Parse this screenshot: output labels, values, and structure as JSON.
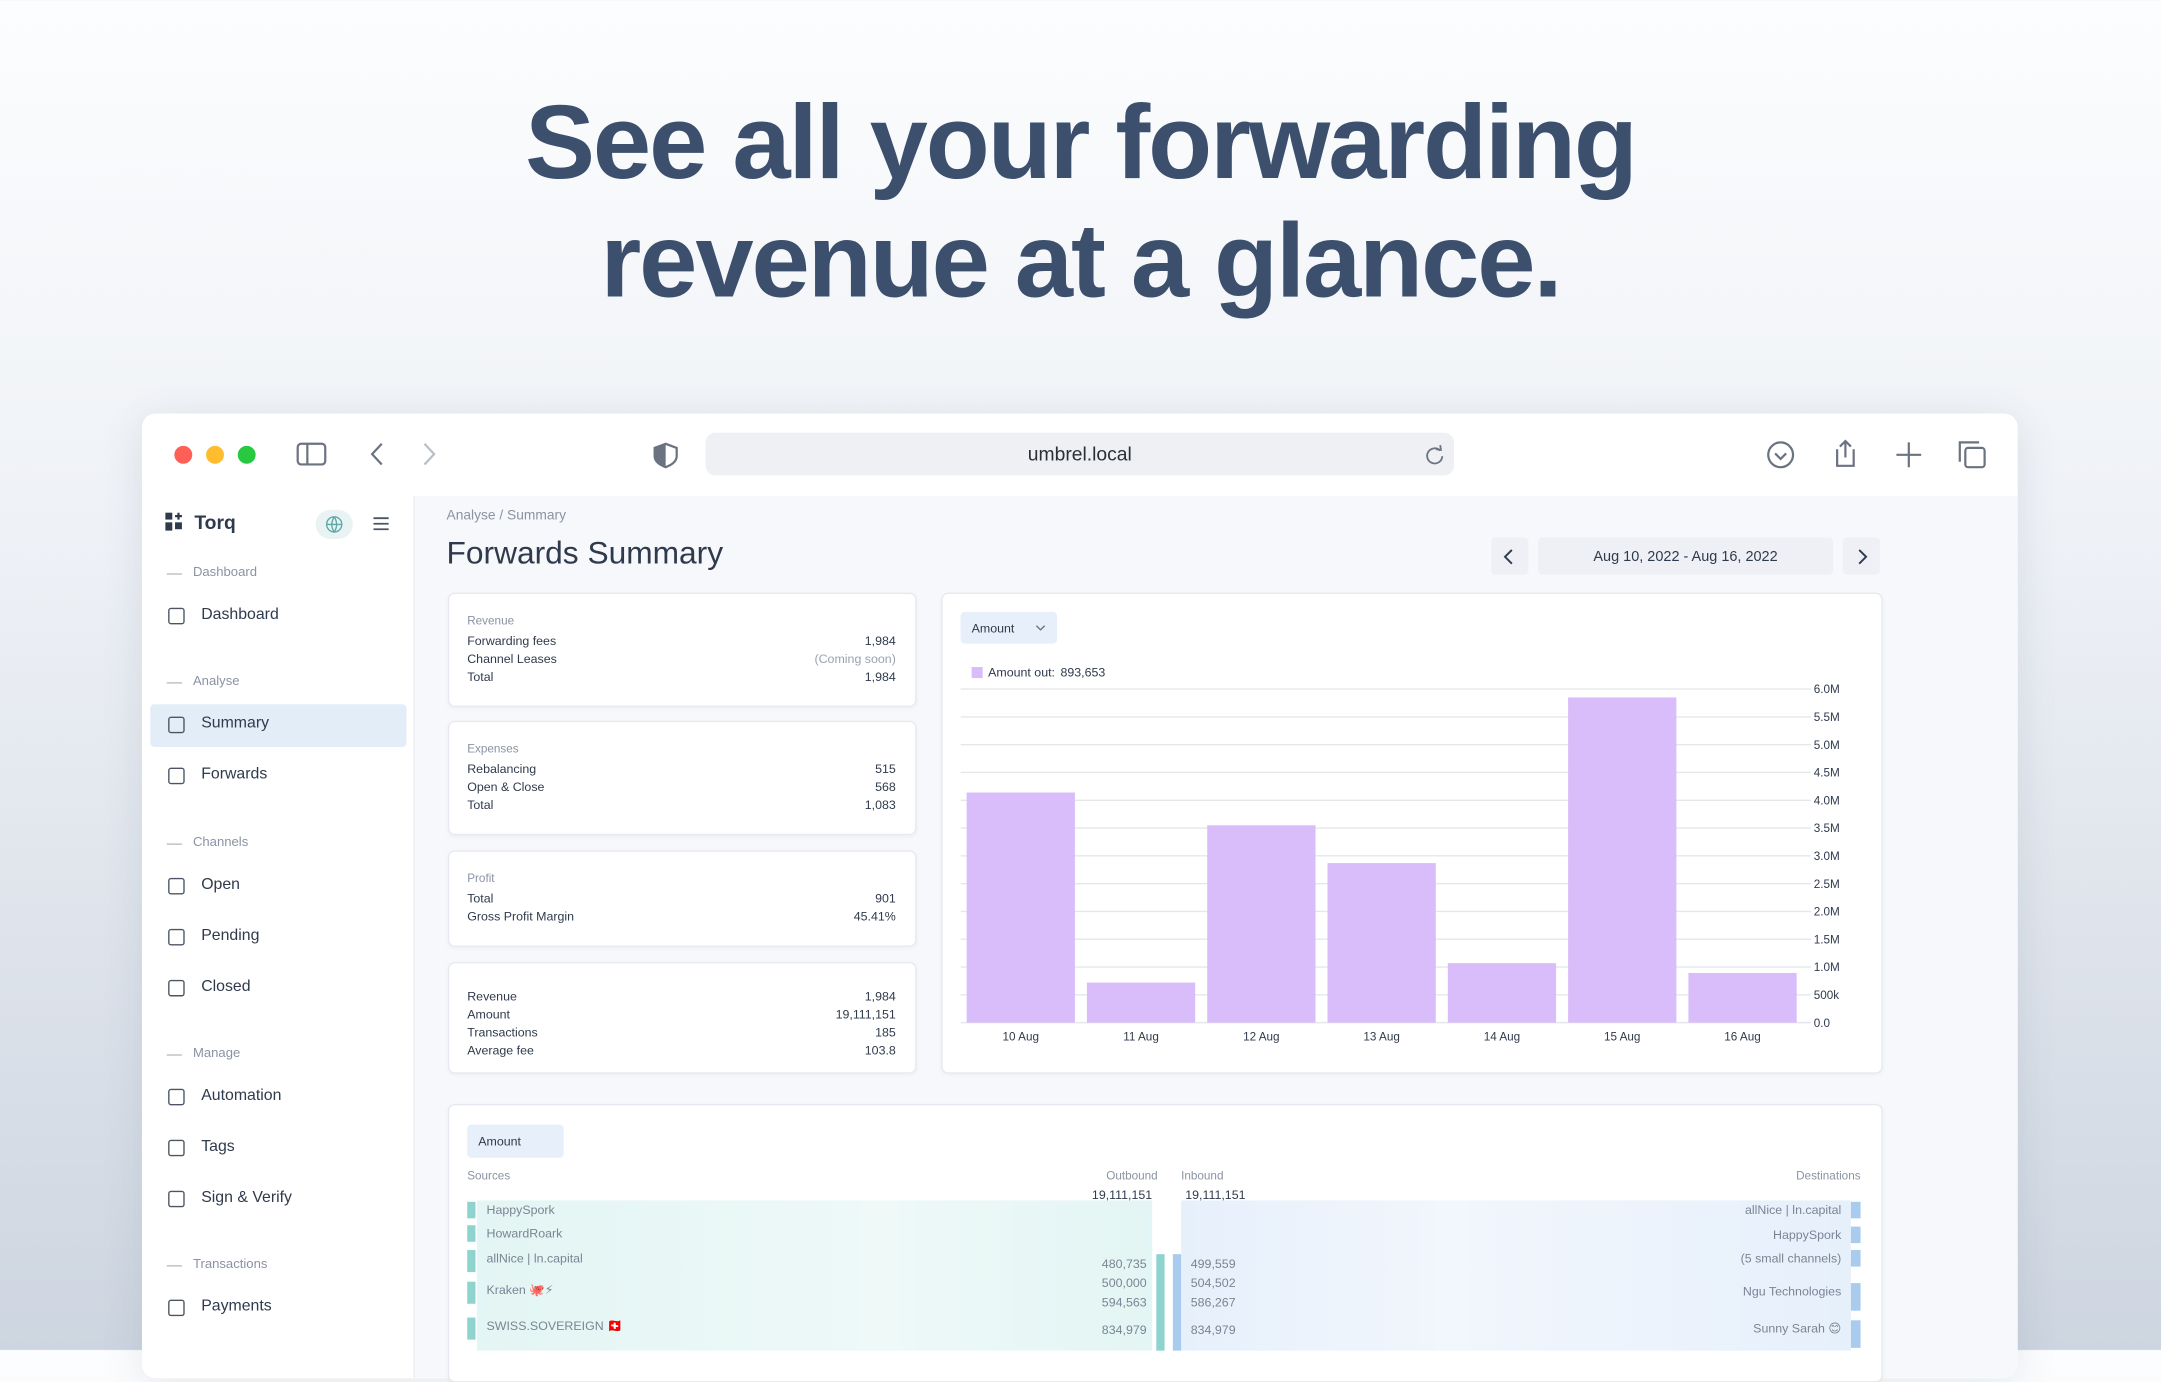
{
  "headline": [
    "See all your forwarding",
    "revenue at a glance."
  ],
  "browser": {
    "url": "umbrel.local"
  },
  "sidebar": {
    "brand": "Torq",
    "sections": [
      {
        "title": "Dashboard",
        "items": [
          "Dashboard"
        ]
      },
      {
        "title": "Analyse",
        "items": [
          "Summary",
          "Forwards"
        ]
      },
      {
        "title": "Channels",
        "items": [
          "Open",
          "Pending",
          "Closed"
        ]
      },
      {
        "title": "Manage",
        "items": [
          "Automation",
          "Tags",
          "Sign & Verify"
        ]
      },
      {
        "title": "Transactions",
        "items": [
          "Payments"
        ]
      }
    ]
  },
  "page": {
    "breadcrumb": "Analyse / Summary",
    "title": "Forwards Summary",
    "date_range": "Aug 10, 2022 - Aug 16, 2022"
  },
  "cards": [
    {
      "title": "Revenue",
      "rows": [
        [
          "Forwarding fees",
          "1,984"
        ],
        [
          "Channel Leases",
          "(Coming soon)"
        ],
        [
          "Total",
          "1,984"
        ]
      ]
    },
    {
      "title": "Expenses",
      "rows": [
        [
          "Rebalancing",
          "515"
        ],
        [
          "Open & Close",
          "568"
        ],
        [
          "Total",
          "1,083"
        ]
      ]
    },
    {
      "title": "Profit",
      "rows": [
        [
          "Total",
          "901"
        ],
        [
          "Gross Profit Margin",
          "45.41%"
        ]
      ]
    },
    {
      "rows": [
        [
          "Revenue",
          "1,984"
        ],
        [
          "Amount",
          "19,111,151"
        ],
        [
          "Transactions",
          "185"
        ],
        [
          "Average fee",
          "103.8"
        ]
      ]
    }
  ],
  "chart_data": {
    "type": "bar",
    "selector": "Amount",
    "categories": [
      "10 Aug",
      "11 Aug",
      "12 Aug",
      "13 Aug",
      "14 Aug",
      "15 Aug",
      "16 Aug"
    ],
    "series": [
      {
        "name": "Amount out:",
        "color": "#d8bdfa",
        "values": [
          4140000,
          720000,
          3550000,
          2870000,
          1070000,
          5850000,
          893653
        ]
      }
    ],
    "legend_value": "893,653",
    "ylim": [
      0,
      6000000
    ],
    "yticks": [
      {
        "value": 0,
        "label": "0.0"
      },
      {
        "value": 500000,
        "label": "500k"
      },
      {
        "value": 1000000,
        "label": "1.0M"
      },
      {
        "value": 1500000,
        "label": "1.5M"
      },
      {
        "value": 2000000,
        "label": "2.0M"
      },
      {
        "value": 2500000,
        "label": "2.5M"
      },
      {
        "value": 3000000,
        "label": "3.0M"
      },
      {
        "value": 3500000,
        "label": "3.5M"
      },
      {
        "value": 4000000,
        "label": "4.0M"
      },
      {
        "value": 4500000,
        "label": "4.5M"
      },
      {
        "value": 5000000,
        "label": "5.0M"
      },
      {
        "value": 5500000,
        "label": "5.5M"
      },
      {
        "value": 6000000,
        "label": "6.0M"
      }
    ],
    "grid": true
  },
  "flow": {
    "selector": "Amount",
    "sources_label": "Sources",
    "outbound_label": "Outbound",
    "inbound_label": "Inbound",
    "destinations_label": "Destinations",
    "outbound_total": "19,111,151",
    "inbound_total": "19,111,151",
    "sources": [
      "HappySpork",
      "HowardRoark",
      "allNice | ln.capital",
      "Kraken 🐙⚡",
      "SWISS.SOVEREIGN 🇨🇭"
    ],
    "destinations": [
      "allNice | ln.capital",
      "HappySpork",
      "(5 small channels)",
      "Ngu Technologies",
      "Sunny Sarah 😊"
    ],
    "outbound_values": [
      "480,735",
      "500,000",
      "594,563",
      "834,979"
    ],
    "inbound_values": [
      "499,559",
      "504,502",
      "586,267",
      "834,979"
    ]
  }
}
